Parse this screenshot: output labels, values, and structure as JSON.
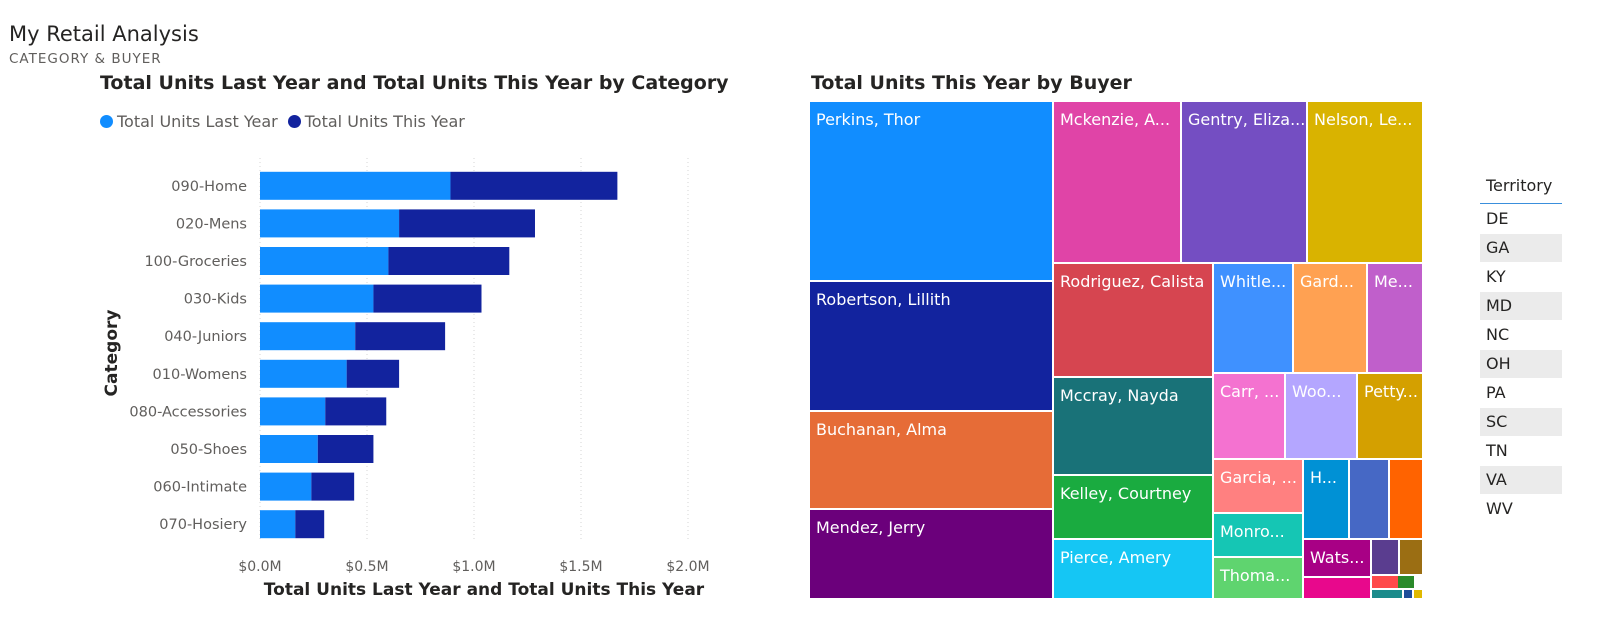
{
  "page": {
    "title": "My Retail Analysis",
    "subtitle": "CATEGORY & BUYER"
  },
  "bar_visual": {
    "title": "Total Units Last Year and Total Units This Year by Category",
    "legend": [
      {
        "label": "Total Units Last Year",
        "color": "#118dff"
      },
      {
        "label": "Total Units This Year",
        "color": "#12239e"
      }
    ]
  },
  "treemap_visual": {
    "title": "Total Units This Year by Buyer"
  },
  "slicer": {
    "header": "Territory",
    "items": [
      "DE",
      "GA",
      "KY",
      "MD",
      "NC",
      "OH",
      "PA",
      "SC",
      "TN",
      "VA",
      "WV"
    ]
  },
  "chart_data": [
    {
      "type": "bar",
      "orientation": "horizontal",
      "stacked": true,
      "title": "Total Units Last Year and Total Units This Year by Category",
      "xlabel": "Total Units Last Year and Total Units This Year",
      "ylabel": "Category",
      "xlim": [
        0,
        2000000
      ],
      "xticks": [
        "$0.0M",
        "$0.5M",
        "$1.0M",
        "$1.5M",
        "$2.0M"
      ],
      "grid": true,
      "legend_position": "top-left",
      "categories": [
        "090-Home",
        "020-Mens",
        "100-Groceries",
        "030-Kids",
        "040-Juniors",
        "010-Womens",
        "080-Accessories",
        "050-Shoes",
        "060-Intimate",
        "070-Hosiery"
      ],
      "series": [
        {
          "name": "Total Units Last Year",
          "color": "#118dff",
          "values": [
            890000,
            650000,
            600000,
            530000,
            445000,
            405000,
            305000,
            270000,
            240000,
            165000
          ]
        },
        {
          "name": "Total Units This Year",
          "color": "#12239e",
          "values": [
            780000,
            635000,
            565000,
            505000,
            420000,
            245000,
            285000,
            260000,
            200000,
            135000
          ]
        }
      ]
    },
    {
      "type": "treemap",
      "title": "Total Units This Year by Buyer",
      "labels_shown": [
        "Perkins, Thor",
        "Robertson, Lillith",
        "Buchanan, Alma",
        "Mendez, Jerry",
        "Mckenzie, A...",
        "Gentry, Eliza...",
        "Nelson, Le...",
        "Rodriguez, Calista",
        "Whitle...",
        "Gard...",
        "Me...",
        "Mccray, Nayda",
        "Carr, ...",
        "Woo...",
        "Petty...",
        "Kelley, Courtney",
        "Garcia, ...",
        "H...",
        "Monro...",
        "Pierce, Amery",
        "Thoma...",
        "Wats..."
      ],
      "tiles": [
        {
          "label": "Perkins, Thor",
          "color": "#118dff"
        },
        {
          "label": "Robertson, Lillith",
          "color": "#12239e"
        },
        {
          "label": "Buchanan, Alma",
          "color": "#e66c37"
        },
        {
          "label": "Mendez, Jerry",
          "color": "#6b007b"
        },
        {
          "label": "Mckenzie, A...",
          "color": "#e044a7"
        },
        {
          "label": "Gentry, Eliza...",
          "color": "#744ec2"
        },
        {
          "label": "Nelson, Le...",
          "color": "#d9b300"
        },
        {
          "label": "Rodriguez, Calista",
          "color": "#d64550"
        },
        {
          "label": "Whitle...",
          "color": "#3f91ff"
        },
        {
          "label": "Gard...",
          "color": "#ffa152"
        },
        {
          "label": "Me...",
          "color": "#c05fcb"
        },
        {
          "label": "Mccray, Nayda",
          "color": "#197278"
        },
        {
          "label": "Carr, ...",
          "color": "#f472d0"
        },
        {
          "label": "Woo...",
          "color": "#b4a6ff"
        },
        {
          "label": "Petty...",
          "color": "#d4a000"
        },
        {
          "label": "Kelley, Courtney",
          "color": "#1aab40"
        },
        {
          "label": "Garcia, ...",
          "color": "#ff8080"
        },
        {
          "label": "H...",
          "color": "#0091d5"
        },
        {
          "label": "",
          "color": "#4668c5"
        },
        {
          "label": "",
          "color": "#ff6300"
        },
        {
          "label": "Monro...",
          "color": "#15c6b4"
        },
        {
          "label": "Pierce, Amery",
          "color": "#15c6f4"
        },
        {
          "label": "Thoma...",
          "color": "#5fd46f"
        },
        {
          "label": "Wats...",
          "color": "#a80085"
        },
        {
          "label": "",
          "color": "#e8088c"
        },
        {
          "label": "",
          "color": "#5a3d8f"
        },
        {
          "label": "",
          "color": "#9b6e13"
        },
        {
          "label": "",
          "color": "#ff4a4a"
        },
        {
          "label": "",
          "color": "#2a8a2a"
        },
        {
          "label": "",
          "color": "#1b8b8b"
        },
        {
          "label": "",
          "color": "#1f4e9a"
        },
        {
          "label": "",
          "color": "#e0b900"
        }
      ]
    }
  ]
}
